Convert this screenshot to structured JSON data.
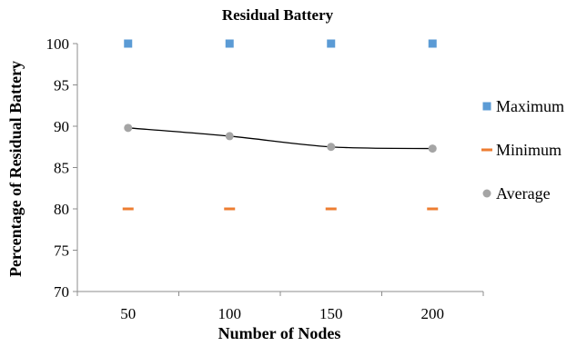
{
  "chart_data": {
    "type": "scatter",
    "title": "Residual Battery",
    "xlabel": "Number of Nodes",
    "ylabel": "Percentage of Residual Battery",
    "categories": [
      "50",
      "100",
      "150",
      "200"
    ],
    "x": [
      50,
      100,
      150,
      200
    ],
    "ylim": [
      70,
      100
    ],
    "yticks": [
      70,
      75,
      80,
      85,
      90,
      95,
      100
    ],
    "grid": false,
    "legend_position": "right",
    "series": [
      {
        "name": "Maximum",
        "values": [
          100,
          100,
          100,
          100
        ],
        "marker": "square",
        "color": "#5b9bd5"
      },
      {
        "name": "Minimum",
        "values": [
          80,
          80,
          80,
          80
        ],
        "marker": "dash",
        "color": "#ed7d31"
      },
      {
        "name": "Average",
        "values": [
          89.8,
          88.8,
          87.5,
          87.3
        ],
        "marker": "circle",
        "color": "#a5a5a5"
      }
    ],
    "trendline": {
      "series": "Average",
      "type": "polynomial",
      "color": "#000000"
    }
  }
}
